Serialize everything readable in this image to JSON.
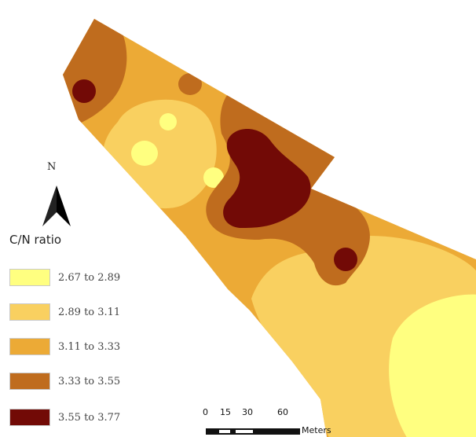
{
  "map": {
    "north_label": "N",
    "legend": {
      "title": "C/N ratio",
      "items": [
        {
          "label": "2.67 to 2.89",
          "color": "#ffff80"
        },
        {
          "label": "2.89 to 3.11",
          "color": "#f9d060"
        },
        {
          "label": "3.11 to 3.33",
          "color": "#ecaa36"
        },
        {
          "label": "3.33 to 3.55",
          "color": "#bf6c1e"
        },
        {
          "label": "3.55 to 3.77",
          "color": "#720a06"
        }
      ]
    },
    "scale_bar": {
      "ticks": [
        "0",
        "15",
        "30",
        "60"
      ],
      "unit": "Meters"
    }
  }
}
